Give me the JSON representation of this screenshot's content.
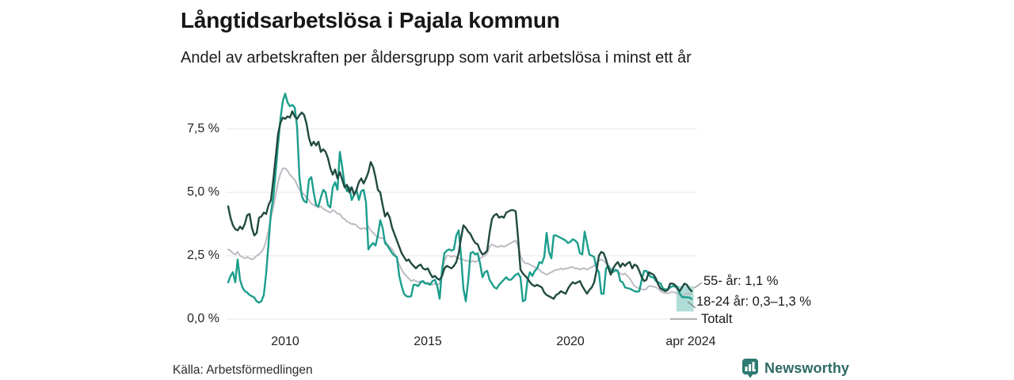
{
  "header": {
    "title": "Långtidsarbetslösa i Pajala kommun",
    "subtitle": "Andel av arbetskraften per åldersgrupp som varit arbetslösa i minst ett år"
  },
  "source": {
    "label": "Källa: Arbetsförmedlingen"
  },
  "branding": {
    "name": "Newsworthy",
    "accent_color": "#2e7a72",
    "text_color": "#2d6a64"
  },
  "chart_data": {
    "type": "line",
    "title": "Långtidsarbetslösa i Pajala kommun",
    "subtitle": "Andel av arbetskraften per åldersgrupp som varit arbetslösa i minst ett år",
    "grid": "horizontal-only",
    "grid_color": "#e4e4e7",
    "x_axis": {
      "unit": "year",
      "x0": 2008.0,
      "dx_years": 0.08333,
      "range": [
        2008.0,
        2024.33
      ],
      "ticks": [
        {
          "x": 2010,
          "label": "2010"
        },
        {
          "x": 2015,
          "label": "2015"
        },
        {
          "x": 2020,
          "label": "2020"
        },
        {
          "x": 2024.22,
          "label": "apr 2024"
        }
      ]
    },
    "y_axis": {
      "unit": "%",
      "range": [
        0,
        9
      ],
      "ticks": [
        {
          "v": 7.5,
          "label": "7,5 %"
        },
        {
          "v": 5.0,
          "label": "5,0 %"
        },
        {
          "v": 2.5,
          "label": "2,5 %"
        },
        {
          "v": 0.0,
          "label": "0,0 %"
        }
      ]
    },
    "series": [
      {
        "id": "totalt",
        "name": "Totalt",
        "color": "#bdbbc3",
        "width": 2,
        "values": [
          2.75,
          2.7,
          2.6,
          2.55,
          2.65,
          2.5,
          2.45,
          2.4,
          2.45,
          2.4,
          2.35,
          2.4,
          2.5,
          2.55,
          2.65,
          2.8,
          3.1,
          3.5,
          4.0,
          4.4,
          4.9,
          5.4,
          5.75,
          5.95,
          5.95,
          5.85,
          5.7,
          5.6,
          5.5,
          5.3,
          5.1,
          5.0,
          4.9,
          4.8,
          4.7,
          4.55,
          4.5,
          4.45,
          4.4,
          4.45,
          4.35,
          4.3,
          4.25,
          4.2,
          4.3,
          4.25,
          4.15,
          4.15,
          4.0,
          3.95,
          3.85,
          3.8,
          3.75,
          3.75,
          3.7,
          3.6,
          3.55,
          3.6,
          3.55,
          3.65,
          3.5,
          3.4,
          3.3,
          3.25,
          3.2,
          3.2,
          3.1,
          2.95,
          2.85,
          2.75,
          2.6,
          2.4,
          2.15,
          1.95,
          1.8,
          1.7,
          1.6,
          1.5,
          1.55,
          1.5,
          1.45,
          1.5,
          1.45,
          1.4,
          1.45,
          1.4,
          1.35,
          1.4,
          1.35,
          1.4,
          1.8,
          2.3,
          2.5,
          2.5,
          2.45,
          2.5,
          2.45,
          2.4,
          2.35,
          2.35,
          2.3,
          2.3,
          2.25,
          2.3,
          2.25,
          2.3,
          2.4,
          2.45,
          2.5,
          2.6,
          2.85,
          2.95,
          2.9,
          2.85,
          2.85,
          2.9,
          2.85,
          2.9,
          2.95,
          3.0,
          3.05,
          3.1,
          2.9,
          2.5,
          2.3,
          2.2,
          2.2,
          2.15,
          2.1,
          2.05,
          2.0,
          1.95,
          1.85,
          1.8,
          1.75,
          1.8,
          1.85,
          1.9,
          1.95,
          1.95,
          2.0,
          1.95,
          2.0,
          2.0,
          2.05,
          2.05,
          2.0,
          2.0,
          1.95,
          2.0,
          2.0,
          1.95,
          2.0,
          2.05,
          2.1,
          2.2,
          2.3,
          2.35,
          2.3,
          2.2,
          2.1,
          2.0,
          1.95,
          1.9,
          1.85,
          1.8,
          1.75,
          1.8,
          1.7,
          1.6,
          1.45,
          1.3,
          1.25,
          1.2,
          1.18,
          1.15,
          1.2,
          1.3,
          1.3,
          1.28,
          1.25,
          1.2,
          1.1,
          1.05,
          1.02,
          1.02,
          1.05,
          1.07,
          1.05,
          1.0,
          0.95,
          0.92,
          0.97,
          1.0,
          1.0,
          1.0
        ]
      },
      {
        "id": "18-24",
        "name": "18-24 år",
        "color": "#1b9e8c",
        "width": 2.4,
        "values": [
          1.45,
          1.7,
          1.85,
          1.45,
          2.35,
          1.55,
          1.25,
          1.1,
          1.05,
          0.95,
          0.9,
          0.85,
          0.7,
          0.65,
          0.7,
          0.95,
          1.8,
          3.0,
          4.2,
          4.8,
          5.8,
          6.9,
          7.9,
          8.6,
          8.9,
          8.55,
          8.4,
          8.45,
          8.35,
          7.6,
          5.6,
          4.85,
          4.65,
          4.6,
          5.5,
          5.6,
          5.0,
          4.5,
          4.45,
          4.8,
          5.1,
          5.0,
          4.5,
          4.4,
          5.2,
          5.4,
          5.1,
          6.6,
          6.0,
          5.3,
          5.05,
          5.2,
          4.7,
          4.9,
          5.1,
          4.7,
          5.05,
          5.1,
          4.6,
          2.75,
          2.9,
          3.0,
          2.9,
          3.3,
          3.9,
          3.6,
          3.0,
          2.9,
          2.75,
          2.6,
          2.5,
          2.45,
          1.7,
          1.3,
          1.0,
          0.9,
          0.88,
          0.9,
          1.35,
          1.35,
          1.3,
          1.45,
          1.5,
          1.4,
          1.4,
          1.35,
          1.5,
          1.55,
          1.3,
          0.8,
          1.95,
          2.6,
          2.7,
          2.75,
          2.7,
          2.75,
          3.3,
          3.5,
          2.5,
          1.2,
          0.7,
          1.5,
          2.6,
          2.65,
          2.55,
          2.6,
          2.2,
          1.65,
          1.85,
          1.9,
          1.55,
          1.4,
          1.25,
          1.2,
          1.35,
          1.45,
          1.55,
          1.65,
          1.55,
          1.55,
          1.65,
          1.75,
          1.8,
          1.65,
          0.7,
          0.75,
          1.55,
          1.85,
          1.7,
          1.9,
          2.0,
          2.25,
          2.2,
          2.45,
          3.4,
          2.65,
          2.4,
          3.3,
          3.3,
          3.25,
          3.2,
          3.15,
          3.1,
          3.0,
          3.05,
          3.15,
          3.1,
          3.0,
          2.6,
          2.55,
          3.45,
          3.0,
          2.55,
          2.5,
          2.45,
          2.0,
          1.85,
          1.0,
          1.0,
          2.0,
          2.1,
          1.9,
          1.85,
          1.95,
          1.9,
          1.5,
          1.45,
          1.25,
          1.22,
          1.2,
          1.15,
          1.1,
          1.08,
          1.1,
          1.55,
          1.9,
          1.9,
          1.75,
          1.65,
          1.65,
          1.5,
          1.45,
          1.4,
          1.2,
          1.17,
          1.17,
          1.25,
          1.3,
          1.28,
          1.28,
          1.0,
          0.87,
          0.86,
          0.86,
          0.85,
          0.8
        ]
      },
      {
        "id": "55plus",
        "name": "55- år",
        "color": "#214a40",
        "width": 2.4,
        "values": [
          4.45,
          4.0,
          3.7,
          3.55,
          3.5,
          3.65,
          3.55,
          3.75,
          4.1,
          4.15,
          3.6,
          3.3,
          3.4,
          4.0,
          4.05,
          4.2,
          4.15,
          4.5,
          4.7,
          5.5,
          6.4,
          7.3,
          7.75,
          7.95,
          7.9,
          8.0,
          7.95,
          8.2,
          8.0,
          7.9,
          8.05,
          8.15,
          8.05,
          7.7,
          7.15,
          6.85,
          7.0,
          6.85,
          7.0,
          6.6,
          6.7,
          6.6,
          6.35,
          5.95,
          5.7,
          5.9,
          5.55,
          5.8,
          5.5,
          5.2,
          5.3,
          5.0,
          5.2,
          4.9,
          5.1,
          5.4,
          5.55,
          5.35,
          5.55,
          5.8,
          6.2,
          6.0,
          5.6,
          5.1,
          5.0,
          4.5,
          4.05,
          4.2,
          4.0,
          3.6,
          3.35,
          3.1,
          2.85,
          2.6,
          2.45,
          2.3,
          2.35,
          2.2,
          2.1,
          2.0,
          2.1,
          2.15,
          2.0,
          1.95,
          2.0,
          1.8,
          1.65,
          1.7,
          1.6,
          1.55,
          1.7,
          2.0,
          2.1,
          2.05,
          2.0,
          2.1,
          2.25,
          2.6,
          3.2,
          3.7,
          3.6,
          3.45,
          3.35,
          3.15,
          3.0,
          2.95,
          2.7,
          2.55,
          2.6,
          2.7,
          3.4,
          3.95,
          4.1,
          4.15,
          4.0,
          4.05,
          4.0,
          4.2,
          4.25,
          4.3,
          4.3,
          4.25,
          3.2,
          1.95,
          1.8,
          1.7,
          1.6,
          1.45,
          1.35,
          1.3,
          1.35,
          1.3,
          1.25,
          1.05,
          0.95,
          0.9,
          0.85,
          0.8,
          0.95,
          1.0,
          1.1,
          1.05,
          1.0,
          1.2,
          1.35,
          1.45,
          1.4,
          1.45,
          1.5,
          1.3,
          1.15,
          1.0,
          1.15,
          1.25,
          1.45,
          1.9,
          2.5,
          2.65,
          2.6,
          2.35,
          2.0,
          1.75,
          2.0,
          2.15,
          2.25,
          2.05,
          2.2,
          2.1,
          2.2,
          2.25,
          2.0,
          2.15,
          2.1,
          1.9,
          1.65,
          1.5,
          1.55,
          1.85,
          1.8,
          1.75,
          1.6,
          1.35,
          1.2,
          1.15,
          1.1,
          1.15,
          1.4,
          1.4,
          1.35,
          1.2,
          1.1,
          1.25,
          1.4,
          1.35,
          1.2,
          1.1
        ]
      }
    ],
    "uncertainty_band": {
      "series": "18-24 år",
      "x_start": 2023.72,
      "x_end": 2024.32,
      "low": 0.3,
      "high": 1.3,
      "color": "rgba(27,158,140,0.35)"
    },
    "annotations": [
      {
        "id": "a55",
        "text": "55- år: 1,1 %"
      },
      {
        "id": "a1824",
        "text": "18-24 år: 0,3–1,3 %"
      },
      {
        "id": "atotal",
        "text": "Totalt"
      }
    ],
    "legend_position": "right-annotations"
  }
}
